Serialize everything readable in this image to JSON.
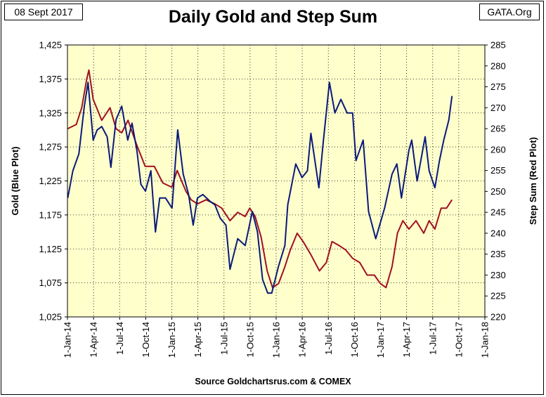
{
  "header": {
    "date_label": "08 Sept 2017",
    "brand_label": "GATA.Org",
    "title": "Daily Gold and Step Sum",
    "source": "Source Goldchartsrus.com & COMEX"
  },
  "colors": {
    "plot_background": "#ffffcc",
    "gold_series": "#0a1a7a",
    "step_sum_series": "#a01020",
    "grid": "#000000"
  },
  "chart_data": {
    "type": "line",
    "grid": true,
    "title": "Daily Gold and Step Sum",
    "xlabel": "",
    "ylabel_left": "Gold   (Blue Plot)",
    "ylabel_right": "Step Sum   (Red Plot)",
    "x_tick_labels": [
      "1-Jan-14",
      "1-Apr-14",
      "1-Jul-14",
      "1-Oct-14",
      "1-Jan-15",
      "1-Apr-15",
      "1-Jul-15",
      "1-Oct-15",
      "1-Jan-16",
      "1-Apr-16",
      "1-Jul-16",
      "1-Oct-16",
      "1-Jan-17",
      "1-Apr-17",
      "1-Jul-17",
      "1-Oct-17",
      "1-Jan-18"
    ],
    "xlim": [
      "2014-01-01",
      "2018-01-01"
    ],
    "left_axis": {
      "ylim": [
        1025,
        1425
      ],
      "ticks": [
        "1,025",
        "1,075",
        "1,125",
        "1,175",
        "1,225",
        "1,275",
        "1,325",
        "1,375",
        "1,425"
      ]
    },
    "right_axis": {
      "ylim": [
        220,
        285
      ],
      "ticks": [
        "220",
        "225",
        "230",
        "235",
        "240",
        "245",
        "250",
        "255",
        "260",
        "265",
        "270",
        "275",
        "280",
        "285"
      ]
    },
    "series": [
      {
        "name": "Gold",
        "axis": "left",
        "x": [
          "2014-01-02",
          "2014-01-20",
          "2014-02-10",
          "2014-03-01",
          "2014-03-14",
          "2014-04-01",
          "2014-04-15",
          "2014-05-01",
          "2014-05-20",
          "2014-06-02",
          "2014-06-20",
          "2014-07-10",
          "2014-07-31",
          "2014-08-15",
          "2014-09-01",
          "2014-09-15",
          "2014-10-01",
          "2014-10-20",
          "2014-11-05",
          "2014-11-20",
          "2014-12-10",
          "2015-01-02",
          "2015-01-22",
          "2015-02-10",
          "2015-03-01",
          "2015-03-17",
          "2015-04-01",
          "2015-04-20",
          "2015-05-15",
          "2015-06-01",
          "2015-06-20",
          "2015-07-10",
          "2015-07-24",
          "2015-08-20",
          "2015-09-15",
          "2015-10-10",
          "2015-10-28",
          "2015-11-15",
          "2015-12-03",
          "2015-12-17",
          "2016-01-10",
          "2016-02-01",
          "2016-02-11",
          "2016-03-10",
          "2016-04-01",
          "2016-04-20",
          "2016-05-02",
          "2016-05-30",
          "2016-06-15",
          "2016-07-06",
          "2016-07-25",
          "2016-08-15",
          "2016-09-06",
          "2016-09-25",
          "2016-10-07",
          "2016-11-01",
          "2016-11-20",
          "2016-12-15",
          "2017-01-15",
          "2017-02-10",
          "2017-02-27",
          "2017-03-15",
          "2017-04-10",
          "2017-04-20",
          "2017-05-09",
          "2017-06-06",
          "2017-06-20",
          "2017-07-10",
          "2017-07-26",
          "2017-08-10",
          "2017-08-28",
          "2017-09-08"
        ],
        "values": [
          1200,
          1240,
          1265,
          1335,
          1370,
          1285,
          1300,
          1305,
          1290,
          1245,
          1315,
          1335,
          1285,
          1310,
          1270,
          1220,
          1210,
          1240,
          1150,
          1200,
          1200,
          1185,
          1300,
          1235,
          1205,
          1160,
          1200,
          1205,
          1195,
          1190,
          1170,
          1160,
          1095,
          1140,
          1130,
          1180,
          1150,
          1080,
          1060,
          1060,
          1100,
          1130,
          1190,
          1250,
          1230,
          1240,
          1295,
          1215,
          1285,
          1370,
          1325,
          1345,
          1325,
          1325,
          1255,
          1285,
          1180,
          1140,
          1185,
          1235,
          1250,
          1200,
          1270,
          1285,
          1225,
          1290,
          1240,
          1215,
          1255,
          1285,
          1315,
          1350
        ]
      },
      {
        "name": "Step Sum",
        "axis": "right",
        "x": [
          "2014-01-02",
          "2014-02-01",
          "2014-02-20",
          "2014-03-10",
          "2014-03-17",
          "2014-04-01",
          "2014-05-01",
          "2014-05-30",
          "2014-06-20",
          "2014-07-10",
          "2014-08-01",
          "2014-09-01",
          "2014-09-30",
          "2014-11-01",
          "2014-12-01",
          "2015-01-01",
          "2015-01-20",
          "2015-02-20",
          "2015-03-10",
          "2015-04-01",
          "2015-05-01",
          "2015-06-01",
          "2015-06-25",
          "2015-07-24",
          "2015-08-20",
          "2015-09-15",
          "2015-10-01",
          "2015-10-20",
          "2015-11-10",
          "2015-12-01",
          "2015-12-20",
          "2016-01-10",
          "2016-02-01",
          "2016-02-20",
          "2016-03-15",
          "2016-04-05",
          "2016-05-01",
          "2016-06-01",
          "2016-06-25",
          "2016-07-15",
          "2016-08-10",
          "2016-09-01",
          "2016-09-25",
          "2016-10-20",
          "2016-11-15",
          "2016-12-10",
          "2016-12-31",
          "2017-01-20",
          "2017-02-10",
          "2017-03-01",
          "2017-03-20",
          "2017-04-10",
          "2017-05-05",
          "2017-06-01",
          "2017-06-20",
          "2017-07-10",
          "2017-08-01",
          "2017-08-20",
          "2017-09-08"
        ],
        "values": [
          265,
          266,
          270,
          277,
          279,
          272,
          267,
          270,
          265,
          264,
          267,
          261,
          256,
          256,
          252,
          251,
          255,
          250,
          248,
          247,
          248,
          247,
          246,
          243,
          245,
          244,
          246,
          244,
          239,
          231,
          227,
          228,
          232,
          236,
          240,
          238,
          235,
          231,
          233,
          238,
          237,
          236,
          234,
          233,
          230,
          230,
          228,
          227,
          232,
          240,
          243,
          241,
          243,
          240,
          243,
          241,
          246,
          246,
          248
        ]
      }
    ]
  }
}
